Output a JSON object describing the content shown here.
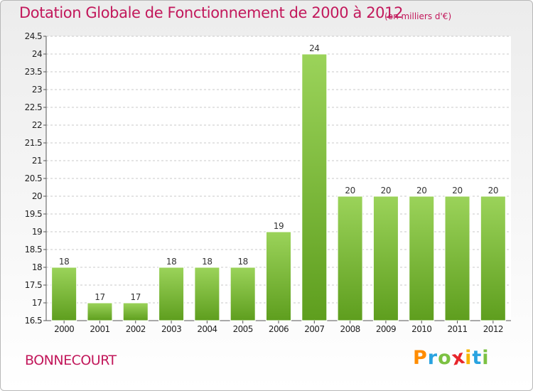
{
  "header": {
    "title": "Dotation Globale de Fonctionnement de 2000 à 2012",
    "unit_note": "(en milliers d'€)"
  },
  "footer": {
    "commune": "BONNECOURT",
    "brand_letters": [
      "P",
      "r",
      "o",
      "x",
      "i",
      "t",
      "i"
    ],
    "brand_colors": [
      "#ff8c00",
      "#29a3e0",
      "#7cc142",
      "#e8262b",
      "#f7b500",
      "#29a3e0",
      "#7cc142"
    ]
  },
  "chart_data": {
    "type": "bar",
    "categories": [
      "2000",
      "2001",
      "2002",
      "2003",
      "2004",
      "2005",
      "2006",
      "2007",
      "2008",
      "2009",
      "2010",
      "2011",
      "2012"
    ],
    "values": [
      18,
      17,
      17,
      18,
      18,
      18,
      19,
      24,
      20,
      20,
      20,
      20,
      20
    ],
    "data_labels": [
      "18",
      "17",
      "17",
      "18",
      "18",
      "18",
      "19",
      "24",
      "20",
      "20",
      "20",
      "20",
      "20"
    ],
    "yticks": [
      "16.5",
      "17",
      "17.5",
      "18",
      "18.5",
      "19",
      "19.5",
      "20",
      "20.5",
      "21",
      "21.5",
      "22",
      "22.5",
      "23",
      "23.5",
      "24",
      "24.5"
    ],
    "ylim": [
      16.5,
      24.5
    ],
    "grid": "horizontal dashed",
    "bar_color": "#7cc142",
    "bar_color_light": "#9bd35a",
    "bar_color_dark": "#5e9e1e"
  }
}
